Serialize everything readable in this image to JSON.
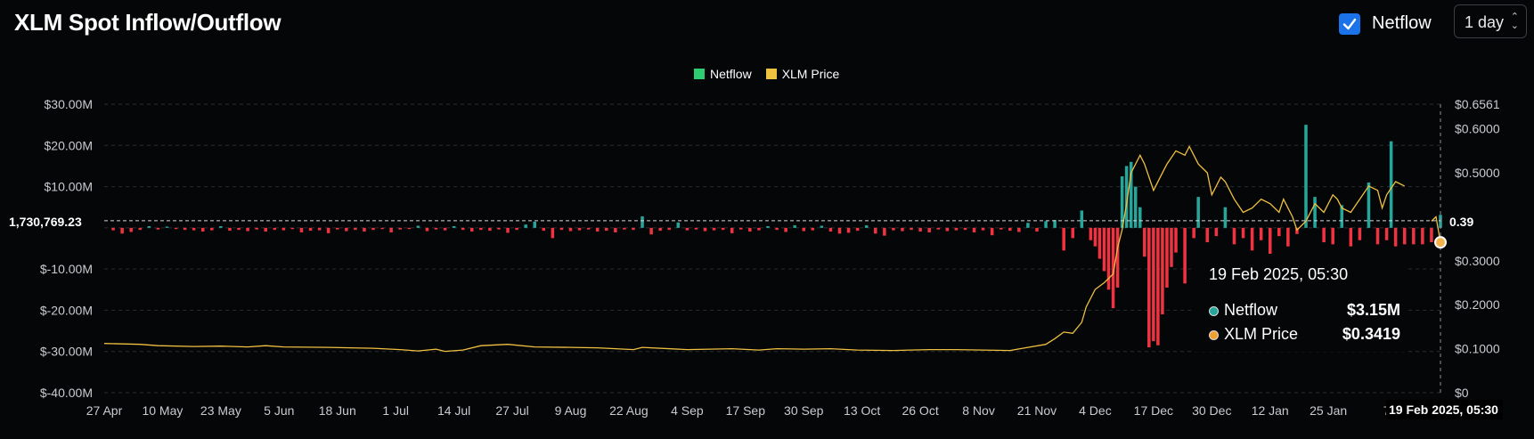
{
  "header": {
    "title": "XLM Spot Inflow/Outflow",
    "netflow_checkbox_label": "Netflow",
    "netflow_checked": true,
    "interval_value": "1 day"
  },
  "tooltip": {
    "date": "19 Feb 2025, 05:30",
    "netflow_label": "Netflow",
    "netflow_value": "$3.15M",
    "price_label": "XLM Price",
    "price_value": "$0.3419"
  },
  "crosshair": {
    "x_label": "19 Feb 2025, 05:30",
    "left_y_label": "1,730,769.23",
    "right_y_label": "0.39"
  },
  "colors": {
    "positive": "#26a69a",
    "negative": "#ef3340",
    "price_line": "#f0c040",
    "legend_netflow": "#2ecc71",
    "legend_price": "#f0c040",
    "checkbox": "#1a73e8",
    "grid": "#2a2d33"
  },
  "chart_data": {
    "type": "bar",
    "title": "XLM Spot Inflow/Outflow",
    "legend": [
      "Netflow",
      "XLM Price"
    ],
    "legend_position": "top-center",
    "grid": true,
    "x_ticks": [
      "27 Apr",
      "10 May",
      "23 May",
      "5 Jun",
      "18 Jun",
      "1 Jul",
      "14 Jul",
      "27 Jul",
      "9 Aug",
      "22 Aug",
      "4 Sep",
      "17 Sep",
      "30 Sep",
      "13 Oct",
      "26 Oct",
      "8 Nov",
      "21 Nov",
      "4 Dec",
      "17 Dec",
      "30 Dec",
      "12 Jan",
      "25 Jan",
      "7"
    ],
    "y_left_ticks": [
      "$30.00M",
      "$20.00M",
      "$10.00M",
      "$-10.00M",
      "$-20.00M",
      "$-30.00M",
      "$-40.00M"
    ],
    "y_left_tick_values": [
      30,
      20,
      10,
      -10,
      -20,
      -30,
      -40
    ],
    "y_left_range": [
      -40,
      30
    ],
    "y_right_ticks": [
      "$0.6561",
      "$0.6000",
      "$0.5000",
      "$0.3000",
      "$0.2000",
      "$0.1000",
      "$0"
    ],
    "y_right_tick_values": [
      0.6561,
      0.6,
      0.5,
      0.3,
      0.2,
      0.1,
      0
    ],
    "y_right_range": [
      0,
      0.6561
    ],
    "day_index_range": [
      0,
      298
    ],
    "netflow_series": {
      "name": "Netflow",
      "unit": "M USD",
      "points": [
        [
          2,
          -0.6
        ],
        [
          4,
          -1.4
        ],
        [
          6,
          -1.0
        ],
        [
          8,
          -0.5
        ],
        [
          10,
          0.4
        ],
        [
          12,
          -0.4
        ],
        [
          14,
          0.3
        ],
        [
          16,
          -0.3
        ],
        [
          18,
          -0.5
        ],
        [
          20,
          -0.6
        ],
        [
          22,
          -0.9
        ],
        [
          24,
          -0.6
        ],
        [
          26,
          0.4
        ],
        [
          28,
          -0.7
        ],
        [
          30,
          -0.5
        ],
        [
          32,
          -0.8
        ],
        [
          34,
          -0.4
        ],
        [
          36,
          -0.9
        ],
        [
          38,
          -0.5
        ],
        [
          40,
          -0.6
        ],
        [
          42,
          -0.3
        ],
        [
          44,
          -1.1
        ],
        [
          46,
          -0.7
        ],
        [
          48,
          -0.6
        ],
        [
          50,
          -1.3
        ],
        [
          52,
          -0.4
        ],
        [
          54,
          -0.8
        ],
        [
          56,
          -0.5
        ],
        [
          58,
          -0.9
        ],
        [
          60,
          -0.5
        ],
        [
          62,
          -0.3
        ],
        [
          64,
          -1.1
        ],
        [
          66,
          -0.4
        ],
        [
          68,
          -0.3
        ],
        [
          70,
          0.5
        ],
        [
          72,
          -0.8
        ],
        [
          74,
          -0.4
        ],
        [
          76,
          -0.6
        ],
        [
          78,
          0.4
        ],
        [
          80,
          -0.5
        ],
        [
          82,
          -0.9
        ],
        [
          84,
          -0.5
        ],
        [
          86,
          -0.7
        ],
        [
          88,
          -0.4
        ],
        [
          90,
          -1.2
        ],
        [
          92,
          -0.5
        ],
        [
          94,
          0.8
        ],
        [
          96,
          1.5
        ],
        [
          98,
          -0.7
        ],
        [
          100,
          -2.5
        ],
        [
          102,
          -0.5
        ],
        [
          104,
          -0.8
        ],
        [
          106,
          -0.6
        ],
        [
          108,
          -0.4
        ],
        [
          110,
          -0.9
        ],
        [
          112,
          -0.7
        ],
        [
          114,
          -1.1
        ],
        [
          116,
          -0.4
        ],
        [
          118,
          -0.5
        ],
        [
          120,
          2.8
        ],
        [
          122,
          -1.6
        ],
        [
          124,
          -0.7
        ],
        [
          126,
          -0.5
        ],
        [
          128,
          1.3
        ],
        [
          130,
          -0.6
        ],
        [
          132,
          -0.4
        ],
        [
          134,
          -0.8
        ],
        [
          136,
          -0.6
        ],
        [
          138,
          -0.5
        ],
        [
          140,
          -1.3
        ],
        [
          142,
          -0.4
        ],
        [
          144,
          -0.9
        ],
        [
          146,
          -0.6
        ],
        [
          148,
          0.4
        ],
        [
          150,
          -0.5
        ],
        [
          152,
          -1.0
        ],
        [
          154,
          0.6
        ],
        [
          156,
          -0.8
        ],
        [
          158,
          -0.6
        ],
        [
          160,
          0.5
        ],
        [
          162,
          -0.9
        ],
        [
          164,
          -1.4
        ],
        [
          166,
          -1.2
        ],
        [
          168,
          -0.7
        ],
        [
          170,
          0.6
        ],
        [
          172,
          -1.4
        ],
        [
          174,
          -1.9
        ],
        [
          176,
          -0.6
        ],
        [
          178,
          -0.8
        ],
        [
          180,
          -0.5
        ],
        [
          182,
          -0.9
        ],
        [
          184,
          -1.1
        ],
        [
          186,
          -0.4
        ],
        [
          188,
          -0.8
        ],
        [
          190,
          -0.6
        ],
        [
          192,
          -0.5
        ],
        [
          194,
          -1.1
        ],
        [
          196,
          -0.6
        ],
        [
          198,
          -1.8
        ],
        [
          200,
          -0.4
        ],
        [
          202,
          -0.7
        ],
        [
          204,
          -1.0
        ],
        [
          206,
          1.2
        ],
        [
          208,
          -0.9
        ],
        [
          210,
          1.6
        ],
        [
          212,
          1.9
        ],
        [
          214,
          -5.5
        ],
        [
          216,
          -2.5
        ],
        [
          218,
          4.2
        ],
        [
          220,
          -3.0
        ],
        [
          221,
          -4.5
        ],
        [
          222,
          -7.5
        ],
        [
          223,
          -10.5
        ],
        [
          224,
          -15.0
        ],
        [
          225,
          -19.5
        ],
        [
          226,
          -14.5
        ],
        [
          227,
          12.5
        ],
        [
          228,
          15.0
        ],
        [
          229,
          16.0
        ],
        [
          230,
          10.0
        ],
        [
          231,
          5.0
        ],
        [
          232,
          -7.0
        ],
        [
          233,
          -29.0
        ],
        [
          234,
          -27.5
        ],
        [
          235,
          -28.5
        ],
        [
          236,
          -21.0
        ],
        [
          237,
          -14.5
        ],
        [
          238,
          -9.5
        ],
        [
          239,
          -6.0
        ],
        [
          241,
          -13.5
        ],
        [
          243,
          -2.5
        ],
        [
          244,
          7.5
        ],
        [
          246,
          -3.5
        ],
        [
          248,
          -2.0
        ],
        [
          250,
          5.0
        ],
        [
          252,
          -4.0
        ],
        [
          254,
          -2.5
        ],
        [
          256,
          -5.5
        ],
        [
          258,
          -3.0
        ],
        [
          260,
          -7.0
        ],
        [
          262,
          -2.0
        ],
        [
          264,
          -4.5
        ],
        [
          266,
          -1.5
        ],
        [
          268,
          25.0
        ],
        [
          270,
          7.5
        ],
        [
          272,
          -3.5
        ],
        [
          274,
          -4.0
        ],
        [
          276,
          5.5
        ],
        [
          278,
          -4.5
        ],
        [
          280,
          -3.0
        ],
        [
          282,
          11.0
        ],
        [
          284,
          -4.0
        ],
        [
          286,
          -3.0
        ],
        [
          287,
          21.0
        ],
        [
          288,
          -4.5
        ],
        [
          290,
          -4.0
        ],
        [
          292,
          -4.0
        ],
        [
          294,
          -4.0
        ],
        [
          296,
          -3.5
        ],
        [
          298,
          3.15
        ]
      ]
    },
    "price_series": {
      "name": "XLM Price",
      "unit": "USD",
      "points": [
        [
          0,
          0.112
        ],
        [
          8,
          0.11
        ],
        [
          12,
          0.107
        ],
        [
          20,
          0.105
        ],
        [
          26,
          0.106
        ],
        [
          32,
          0.104
        ],
        [
          36,
          0.107
        ],
        [
          40,
          0.104
        ],
        [
          50,
          0.103
        ],
        [
          60,
          0.101
        ],
        [
          66,
          0.098
        ],
        [
          70,
          0.095
        ],
        [
          74,
          0.099
        ],
        [
          76,
          0.094
        ],
        [
          80,
          0.097
        ],
        [
          84,
          0.107
        ],
        [
          90,
          0.11
        ],
        [
          96,
          0.104
        ],
        [
          104,
          0.103
        ],
        [
          110,
          0.102
        ],
        [
          118,
          0.098
        ],
        [
          120,
          0.103
        ],
        [
          130,
          0.098
        ],
        [
          140,
          0.1
        ],
        [
          146,
          0.097
        ],
        [
          150,
          0.1
        ],
        [
          156,
          0.099
        ],
        [
          162,
          0.1
        ],
        [
          168,
          0.097
        ],
        [
          176,
          0.096
        ],
        [
          184,
          0.098
        ],
        [
          190,
          0.098
        ],
        [
          196,
          0.097
        ],
        [
          202,
          0.096
        ],
        [
          206,
          0.103
        ],
        [
          210,
          0.11
        ],
        [
          212,
          0.123
        ],
        [
          214,
          0.138
        ],
        [
          216,
          0.135
        ],
        [
          218,
          0.16
        ],
        [
          219,
          0.195
        ],
        [
          221,
          0.235
        ],
        [
          223,
          0.25
        ],
        [
          225,
          0.27
        ],
        [
          226,
          0.33
        ],
        [
          227,
          0.37
        ],
        [
          228,
          0.43
        ],
        [
          229,
          0.5
        ],
        [
          231,
          0.54
        ],
        [
          232,
          0.52
        ],
        [
          234,
          0.46
        ],
        [
          236,
          0.5
        ],
        [
          237,
          0.52
        ],
        [
          239,
          0.55
        ],
        [
          241,
          0.54
        ],
        [
          242,
          0.56
        ],
        [
          244,
          0.52
        ],
        [
          246,
          0.5
        ],
        [
          247,
          0.45
        ],
        [
          249,
          0.49
        ],
        [
          250,
          0.48
        ],
        [
          252,
          0.44
        ],
        [
          254,
          0.41
        ],
        [
          256,
          0.42
        ],
        [
          258,
          0.44
        ],
        [
          260,
          0.43
        ],
        [
          262,
          0.41
        ],
        [
          263,
          0.44
        ],
        [
          265,
          0.4
        ],
        [
          266,
          0.37
        ],
        [
          268,
          0.39
        ],
        [
          270,
          0.43
        ],
        [
          272,
          0.41
        ],
        [
          274,
          0.45
        ],
        [
          275,
          0.44
        ],
        [
          276,
          0.42
        ],
        [
          278,
          0.41
        ],
        [
          280,
          0.44
        ],
        [
          282,
          0.47
        ],
        [
          284,
          0.46
        ],
        [
          285,
          0.42
        ],
        [
          286,
          0.45
        ],
        [
          288,
          0.48
        ],
        [
          290,
          0.47
        ],
        [
          291,
          0.43
        ],
        [
          292,
          0.43
        ],
        [
          294,
          0.42
        ],
        [
          296,
          0.39
        ],
        [
          297,
          0.4
        ],
        [
          298,
          0.3419
        ]
      ]
    },
    "price_series_visible_ranges": [
      [
        0,
        290
      ],
      [
        296,
        298
      ]
    ],
    "hover_index": 298
  }
}
